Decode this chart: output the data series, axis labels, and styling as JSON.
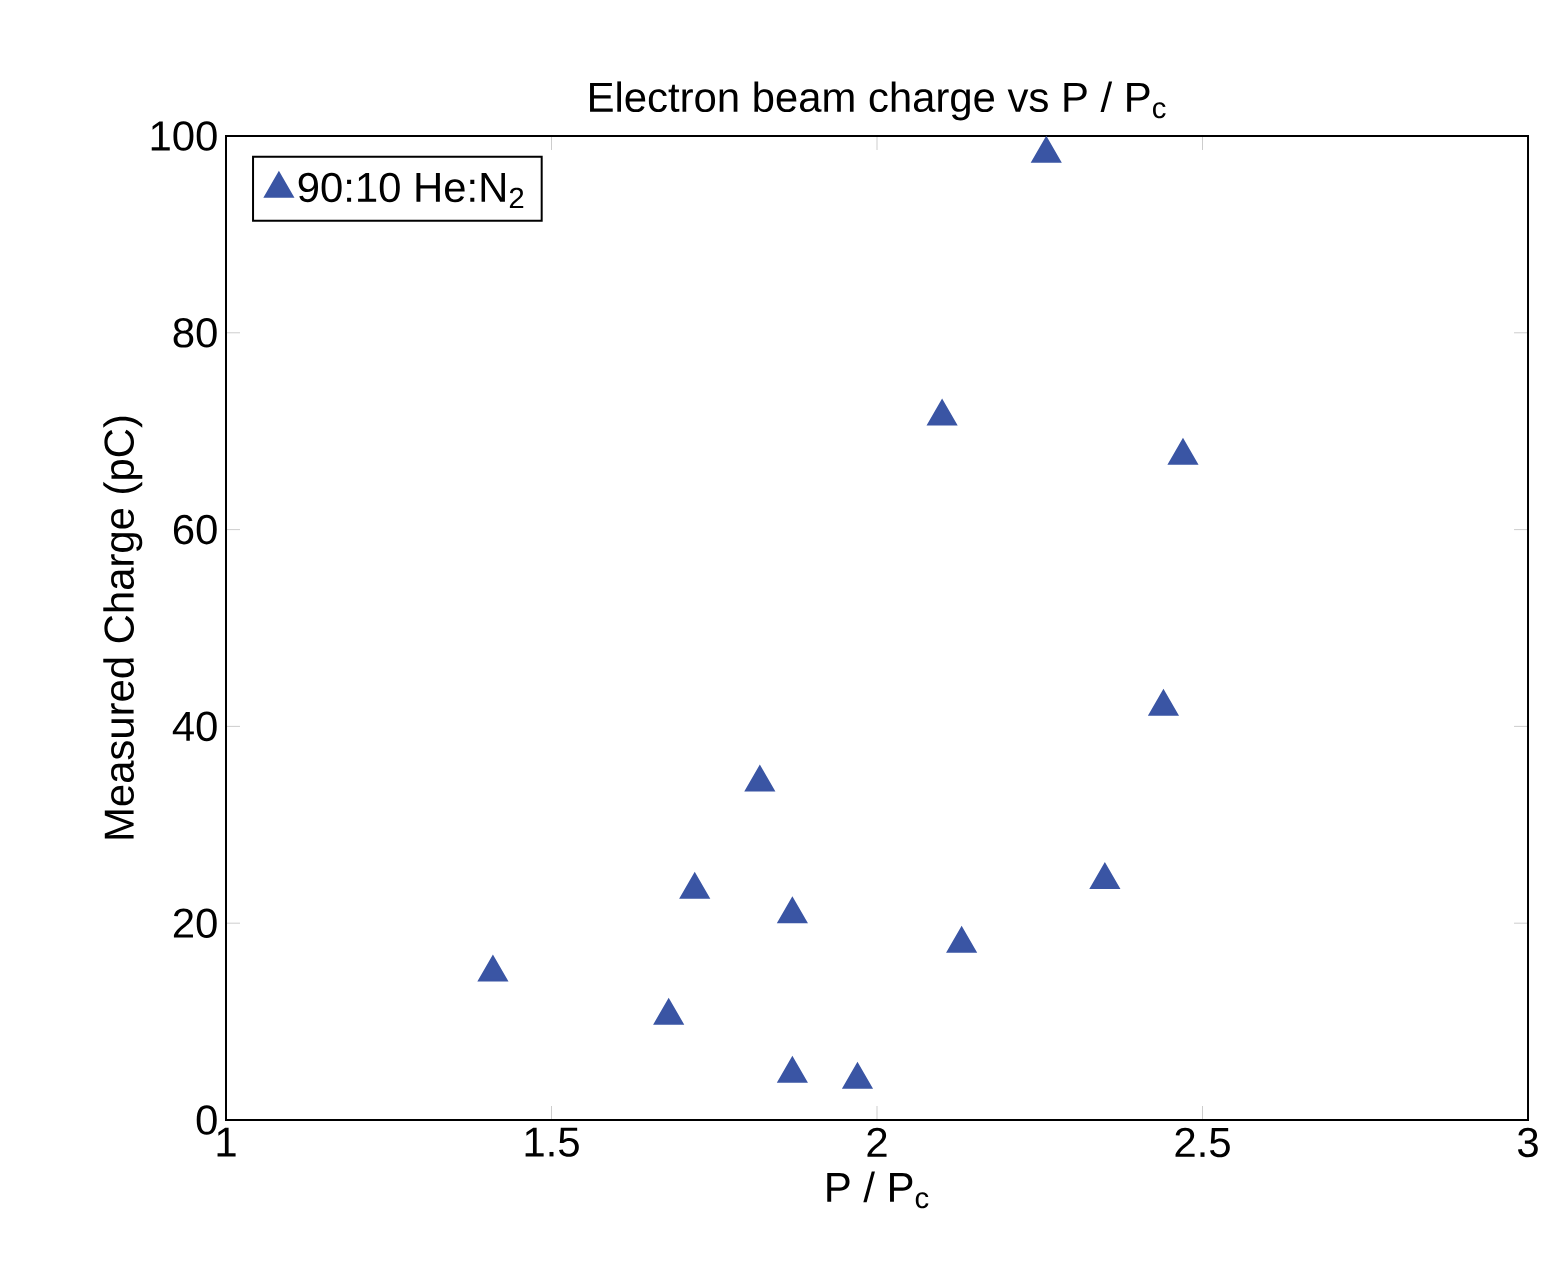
{
  "chart_data": {
    "type": "scatter",
    "title": "Electron beam charge vs P / P$_{c}$",
    "xlabel": "P / P$_{c}$",
    "ylabel": "Measured Charge (pC)",
    "series": [
      {
        "name": "90:10 He:N$_{2}$",
        "color": "#3a55a4",
        "x": [
          1.41,
          1.68,
          1.72,
          1.82,
          1.87,
          1.87,
          1.97,
          2.1,
          2.13,
          2.26,
          2.35,
          2.44,
          2.47
        ],
        "values": [
          15,
          10.6,
          23.4,
          34.3,
          4.7,
          20.9,
          4.1,
          71.5,
          17.9,
          98.2,
          24.4,
          42,
          67.5
        ]
      }
    ],
    "xlim": [
      1,
      3
    ],
    "ylim": [
      0,
      100
    ],
    "xticks": [
      1,
      1.5,
      2,
      2.5,
      3
    ],
    "yticks": [
      0,
      20,
      40,
      60,
      80,
      100
    ],
    "marker": "triangle",
    "legend": "top left",
    "grid": false
  }
}
